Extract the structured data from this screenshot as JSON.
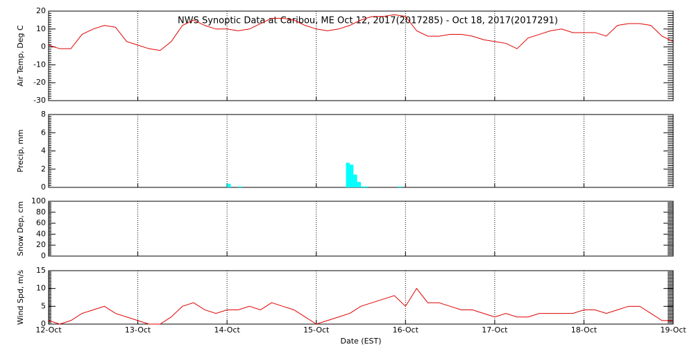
{
  "chart_data": [
    {
      "type": "line",
      "title": "NWS Synoptic Data at Caribou, ME   Oct 12, 2017(2017285) - Oct 18, 2017(2017291)",
      "y_label": "Air Temp, Deg C",
      "x": [
        0,
        3,
        6,
        9,
        12,
        15,
        18,
        21,
        24,
        27,
        30,
        33,
        36,
        39,
        42,
        45,
        48,
        51,
        54,
        57,
        60,
        63,
        66,
        69,
        72,
        75,
        78,
        81,
        84,
        87,
        90,
        93,
        96,
        99,
        102,
        105,
        108,
        111,
        114,
        117,
        120,
        123,
        126,
        129,
        132,
        135,
        138,
        141,
        144,
        147,
        150,
        153,
        156,
        159,
        162,
        165,
        168
      ],
      "series": [
        {
          "name": "Air Temp",
          "color": "#e00000",
          "values": [
            1,
            -1,
            -1,
            7,
            10,
            12,
            11,
            3,
            1,
            -1,
            -2,
            3,
            12,
            15,
            12,
            10,
            10,
            9,
            10,
            13,
            16,
            16,
            15,
            12,
            10,
            9,
            10,
            12,
            15,
            17,
            17,
            18,
            17,
            9,
            6,
            6,
            7,
            7,
            6,
            4,
            3,
            2,
            -1,
            5,
            7,
            9,
            10,
            8,
            8,
            8,
            6,
            12,
            13,
            13,
            12,
            6,
            3
          ]
        }
      ],
      "xlim": [
        0,
        168
      ],
      "xticks": [
        0,
        24,
        48,
        72,
        96,
        120,
        144,
        168
      ],
      "ylim": [
        -30,
        20
      ],
      "yticks": [
        -30,
        -20,
        -10,
        0,
        10,
        20
      ],
      "grid": true
    },
    {
      "type": "bar",
      "y_label": "Precip, mm",
      "x": [
        48,
        51,
        80,
        81,
        82,
        83,
        84,
        85,
        94
      ],
      "series": [
        {
          "name": "Precip",
          "color": "#00ffff",
          "values": [
            0.4,
            0.1,
            2.7,
            2.5,
            1.4,
            0.6,
            0.1,
            0.1,
            0.1
          ]
        }
      ],
      "xlim": [
        0,
        168
      ],
      "xticks": [
        0,
        24,
        48,
        72,
        96,
        120,
        144,
        168
      ],
      "ylim": [
        0,
        8
      ],
      "yticks": [
        0,
        2,
        4,
        6,
        8
      ],
      "grid": true
    },
    {
      "type": "line",
      "y_label": "Snow Dep, cm",
      "xlim": [
        0,
        168
      ],
      "xticks": [
        0,
        24,
        48,
        72,
        96,
        120,
        144,
        168
      ],
      "ylim": [
        0,
        100
      ],
      "yticks": [
        0,
        20,
        40,
        60,
        80,
        100
      ],
      "grid": true
    },
    {
      "type": "line",
      "y_label": "Wind Spd, m/s",
      "x_label": "Date (EST)",
      "x": [
        0,
        3,
        6,
        9,
        12,
        15,
        18,
        21,
        24,
        27,
        30,
        33,
        36,
        39,
        42,
        45,
        48,
        51,
        54,
        57,
        60,
        63,
        66,
        69,
        72,
        75,
        78,
        81,
        84,
        87,
        90,
        93,
        96,
        99,
        102,
        105,
        108,
        111,
        114,
        117,
        120,
        123,
        126,
        129,
        132,
        135,
        138,
        141,
        144,
        147,
        150,
        153,
        156,
        159,
        162,
        165,
        168
      ],
      "series": [
        {
          "name": "Wind Spd",
          "color": "#e00000",
          "values": [
            1,
            0,
            1,
            3,
            4,
            5,
            3,
            2,
            1,
            0,
            0,
            2,
            5,
            6,
            4,
            3,
            4,
            4,
            5,
            4,
            6,
            5,
            4,
            2,
            0,
            1,
            2,
            3,
            5,
            6,
            7,
            8,
            5,
            10,
            6,
            6,
            5,
            4,
            4,
            3,
            2,
            3,
            2,
            2,
            3,
            3,
            3,
            3,
            4,
            4,
            3,
            4,
            5,
            5,
            3,
            1,
            1
          ]
        }
      ],
      "xlim": [
        0,
        168
      ],
      "xticks": [
        {
          "value": 0,
          "label": "12-Oct"
        },
        {
          "value": 24,
          "label": "13-Oct"
        },
        {
          "value": 48,
          "label": "14-Oct"
        },
        {
          "value": 72,
          "label": "15-Oct"
        },
        {
          "value": 96,
          "label": "16-Oct"
        },
        {
          "value": 120,
          "label": "17-Oct"
        },
        {
          "value": 144,
          "label": "18-Oct"
        },
        {
          "value": 168,
          "label": "19-Oct"
        }
      ],
      "ylim": [
        0,
        15
      ],
      "yticks": [
        0,
        5,
        10,
        15
      ],
      "grid": true
    }
  ]
}
